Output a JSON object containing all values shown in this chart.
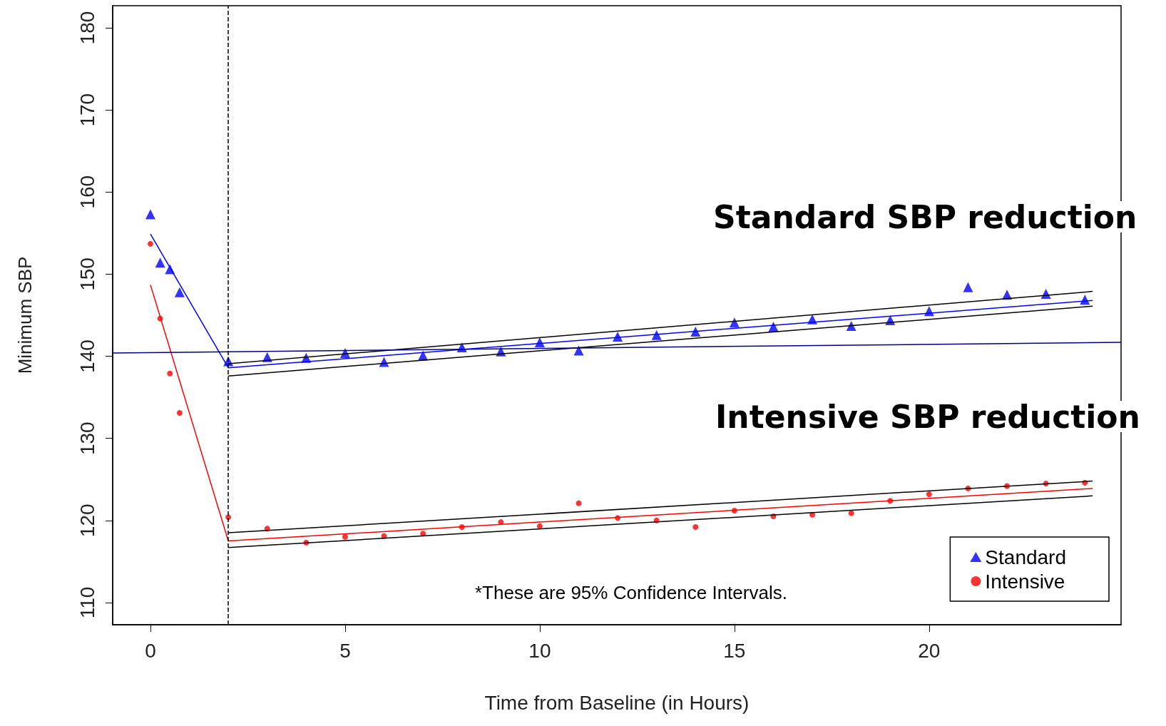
{
  "chart_data": {
    "type": "scatter",
    "xlabel": "Time from Baseline (in Hours)",
    "ylabel": "Minimum SBP",
    "xlim": [
      -0.97,
      24.93
    ],
    "xticks": [
      0,
      5,
      10,
      15,
      20
    ],
    "ylim": [
      107.3,
      182.7
    ],
    "yticks": [
      110,
      120,
      130,
      140,
      150,
      160,
      170,
      180
    ],
    "grid": false,
    "legend": "bottom right",
    "ref_lines": [
      {
        "axis": "x",
        "value": 2,
        "color": "#000000",
        "line_style": "dashed"
      }
    ],
    "annotations": [
      "Standard SBP reduction",
      "Intensive SBP reduction",
      "*These are 95% Confidence Intervals."
    ],
    "series": [
      {
        "name": "Standard",
        "marker": "triangle",
        "color": "#0000ff",
        "x": [
          0,
          0.25,
          0.5,
          0.75,
          2,
          3,
          4,
          5,
          6,
          7,
          8,
          9,
          10,
          11,
          12,
          13,
          14,
          15,
          16,
          17,
          18,
          19,
          20,
          21,
          22,
          23,
          24
        ],
        "values": [
          157.3,
          151.4,
          150.6,
          147.8,
          139.4,
          139.9,
          139.8,
          140.4,
          139.3,
          140.1,
          141.1,
          140.6,
          141.7,
          140.7,
          142.4,
          142.6,
          143.0,
          144.1,
          143.6,
          144.5,
          143.7,
          144.4,
          145.5,
          148.4,
          147.5,
          147.6,
          146.9
        ]
      },
      {
        "name": "Intensive",
        "marker": "circle",
        "color": "#ff0000",
        "x": [
          0,
          0.25,
          0.5,
          0.75,
          2,
          3,
          4,
          5,
          6,
          7,
          8,
          9,
          10,
          11,
          12,
          13,
          14,
          15,
          16,
          17,
          18,
          19,
          20,
          21,
          22,
          23,
          24
        ],
        "values": [
          153.7,
          144.6,
          137.9,
          133.1,
          120.4,
          119.0,
          117.3,
          118.0,
          118.1,
          118.4,
          119.2,
          119.8,
          119.3,
          122.1,
          120.3,
          120.0,
          119.2,
          121.2,
          120.5,
          120.7,
          120.9,
          122.4,
          123.2,
          123.9,
          124.2,
          124.5,
          124.6
        ]
      },
      {
        "type": "line",
        "color": "#0000ff",
        "x": [
          0,
          2,
          24.2
        ],
        "values": [
          154.9,
          138.6,
          146.8
        ]
      },
      {
        "type": "line",
        "color": "#000000",
        "x": [
          2,
          24.2
        ],
        "values": [
          139.1,
          147.9
        ]
      },
      {
        "type": "line",
        "color": "#000000",
        "x": [
          2,
          24.2
        ],
        "values": [
          137.6,
          146.1
        ]
      },
      {
        "type": "line",
        "color": "#ff0000",
        "x": [
          0,
          2,
          24.2
        ],
        "values": [
          148.7,
          117.5,
          123.9
        ]
      },
      {
        "type": "line",
        "color": "#000000",
        "x": [
          2,
          24.2
        ],
        "values": [
          118.5,
          124.8
        ]
      },
      {
        "type": "line",
        "color": "#000000",
        "x": [
          2,
          24.2
        ],
        "values": [
          116.7,
          123.0
        ]
      },
      {
        "type": "line",
        "color": "#000080",
        "x": [
          -0.97,
          24.93
        ],
        "values": [
          140.4,
          141.7
        ]
      }
    ]
  }
}
